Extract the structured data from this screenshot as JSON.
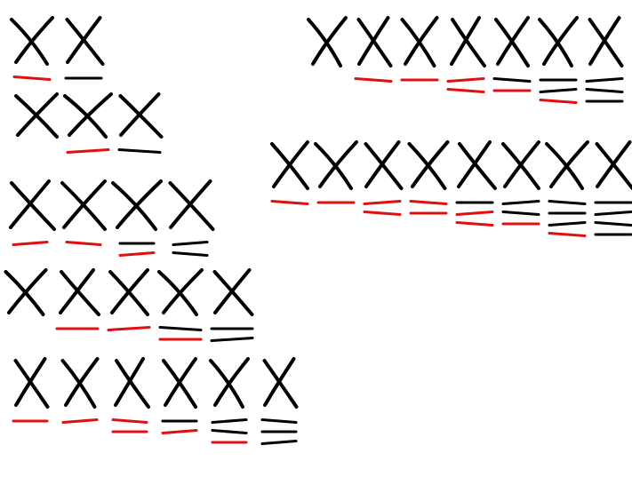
{
  "colors": {
    "background": "#ffffff",
    "ink": "#000000",
    "accent": "#e01010"
  },
  "diagram": {
    "title": "",
    "rows": [
      {
        "marks": [
          {
            "lines": [
              "red"
            ]
          },
          {
            "lines": [
              "black"
            ]
          }
        ]
      },
      {
        "marks": [
          {
            "lines": []
          },
          {
            "lines": [
              "red"
            ]
          },
          {
            "lines": [
              "black"
            ]
          }
        ]
      },
      {
        "marks": [
          {
            "lines": [
              "red"
            ]
          },
          {
            "lines": [
              "red"
            ]
          },
          {
            "lines": [
              "black",
              "red"
            ]
          },
          {
            "lines": [
              "black",
              "black"
            ]
          }
        ]
      },
      {
        "marks": [
          {
            "lines": []
          },
          {
            "lines": [
              "red"
            ]
          },
          {
            "lines": [
              "red"
            ]
          },
          {
            "lines": [
              "black",
              "red"
            ]
          },
          {
            "lines": [
              "black",
              "black"
            ]
          }
        ]
      },
      {
        "marks": [
          {
            "lines": [
              "red"
            ]
          },
          {
            "lines": [
              "red"
            ]
          },
          {
            "lines": [
              "red",
              "red"
            ]
          },
          {
            "lines": [
              "black",
              "red"
            ]
          },
          {
            "lines": [
              "black",
              "black",
              "red"
            ]
          },
          {
            "lines": [
              "black",
              "black",
              "black"
            ]
          }
        ]
      },
      {
        "marks": [
          {
            "lines": []
          },
          {
            "lines": [
              "red"
            ]
          },
          {
            "lines": [
              "red"
            ]
          },
          {
            "lines": [
              "red",
              "red"
            ]
          },
          {
            "lines": [
              "black",
              "red"
            ]
          },
          {
            "lines": [
              "black",
              "black",
              "red"
            ]
          },
          {
            "lines": [
              "black",
              "black",
              "black"
            ]
          }
        ]
      },
      {
        "marks": [
          {
            "lines": [
              "red"
            ]
          },
          {
            "lines": [
              "red"
            ]
          },
          {
            "lines": [
              "red",
              "red"
            ]
          },
          {
            "lines": [
              "red",
              "red"
            ]
          },
          {
            "lines": [
              "black",
              "red",
              "red"
            ]
          },
          {
            "lines": [
              "black",
              "black",
              "red"
            ]
          },
          {
            "lines": [
              "black",
              "black",
              "black",
              "red"
            ]
          },
          {
            "lines": [
              "black",
              "black",
              "black",
              "black"
            ]
          }
        ]
      }
    ]
  }
}
